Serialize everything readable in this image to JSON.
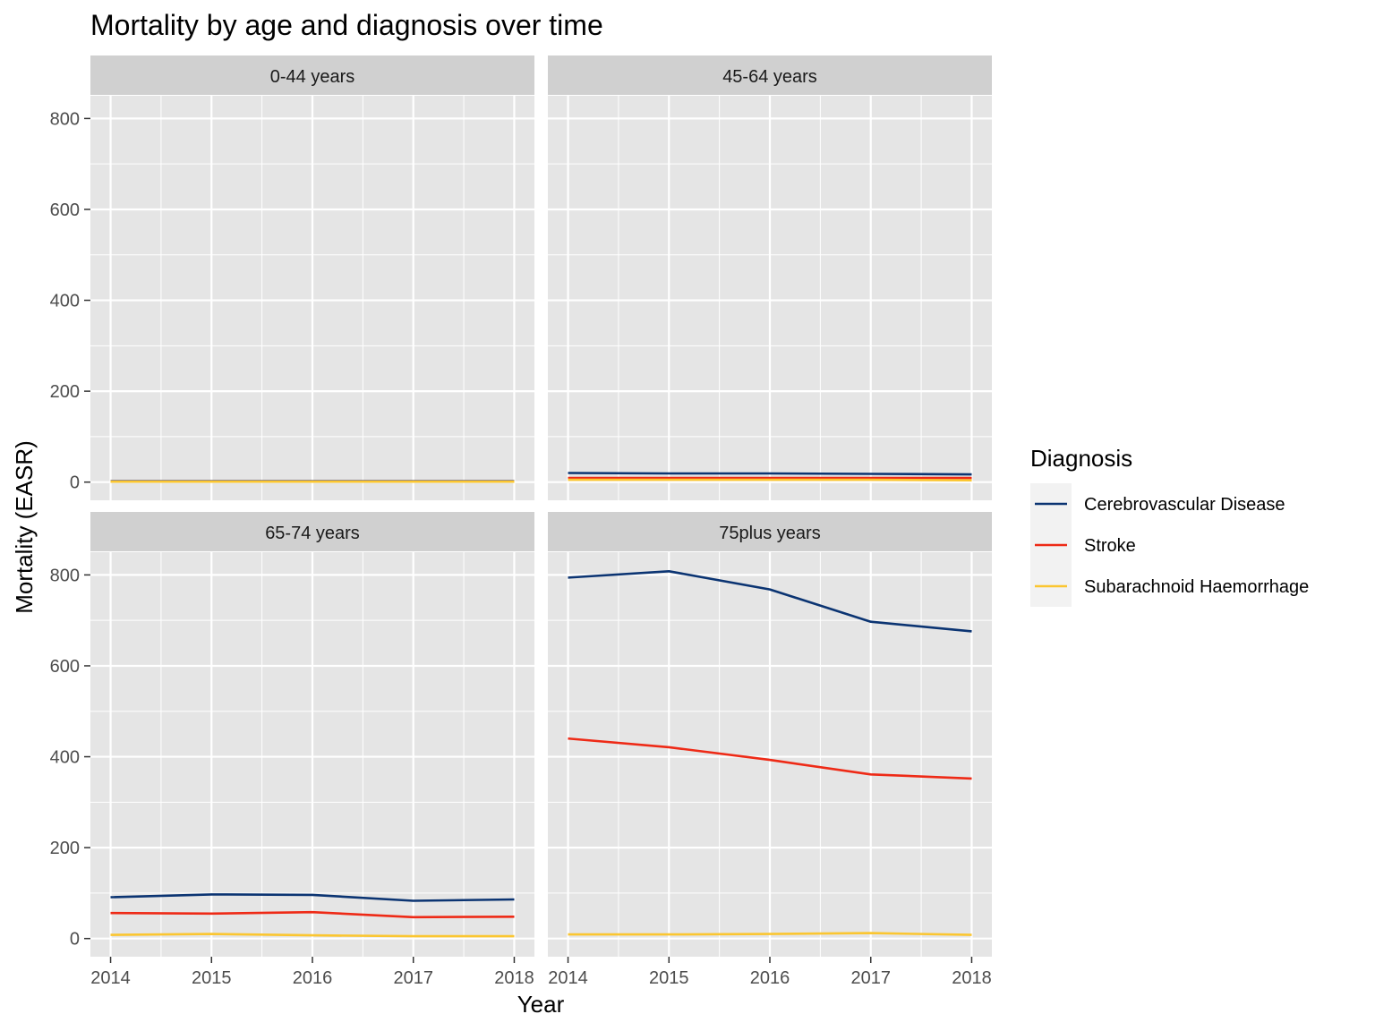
{
  "chart_data": {
    "type": "line",
    "title": "Mortality by age and diagnosis over time",
    "xlabel": "Year",
    "ylabel": "Mortality (EASR)",
    "x": [
      2014,
      2015,
      2016,
      2017,
      2018
    ],
    "x_ticks": [
      "2014",
      "2015",
      "2016",
      "2017",
      "2018"
    ],
    "y_ticks": [
      "0",
      "200",
      "400",
      "600",
      "800"
    ],
    "ylim": [
      -40,
      850
    ],
    "grid": true,
    "legend": {
      "title": "Diagnosis",
      "position": "right",
      "entries": [
        "Cerebrovascular Disease",
        "Stroke",
        "Subarachnoid Haemorrhage"
      ]
    },
    "colors": {
      "Cerebrovascular Disease": "#0b3472",
      "Stroke": "#ee2a16",
      "Subarachnoid Haemorrhage": "#fbc630",
      "panel_bg": "#e5e5e5",
      "strip_bg": "#d0d0d0",
      "grid": "#ffffff"
    },
    "panels": [
      {
        "label": "0-44 years",
        "series": [
          {
            "name": "Cerebrovascular Disease",
            "values": [
              2,
              2,
              2,
              2,
              2
            ]
          },
          {
            "name": "Stroke",
            "values": [
              1,
              1,
              1,
              1,
              1
            ]
          },
          {
            "name": "Subarachnoid Haemorrhage",
            "values": [
              1,
              1,
              1,
              1,
              1
            ]
          }
        ]
      },
      {
        "label": "45-64 years",
        "series": [
          {
            "name": "Cerebrovascular Disease",
            "values": [
              20,
              19,
              19,
              18,
              17
            ]
          },
          {
            "name": "Stroke",
            "values": [
              9,
              9,
              9,
              9,
              9
            ]
          },
          {
            "name": "Subarachnoid Haemorrhage",
            "values": [
              5,
              5,
              5,
              5,
              4
            ]
          }
        ]
      },
      {
        "label": "65-74 years",
        "series": [
          {
            "name": "Cerebrovascular Disease",
            "values": [
              91,
              97,
              96,
              83,
              86
            ]
          },
          {
            "name": "Stroke",
            "values": [
              56,
              55,
              58,
              47,
              48
            ]
          },
          {
            "name": "Subarachnoid Haemorrhage",
            "values": [
              8,
              10,
              7,
              5,
              5
            ]
          }
        ]
      },
      {
        "label": "75plus years",
        "series": [
          {
            "name": "Cerebrovascular Disease",
            "values": [
              794,
              808,
              768,
              697,
              676
            ]
          },
          {
            "name": "Stroke",
            "values": [
              440,
              421,
              393,
              361,
              352
            ]
          },
          {
            "name": "Subarachnoid Haemorrhage",
            "values": [
              9,
              9,
              10,
              12,
              8
            ]
          }
        ]
      }
    ]
  }
}
